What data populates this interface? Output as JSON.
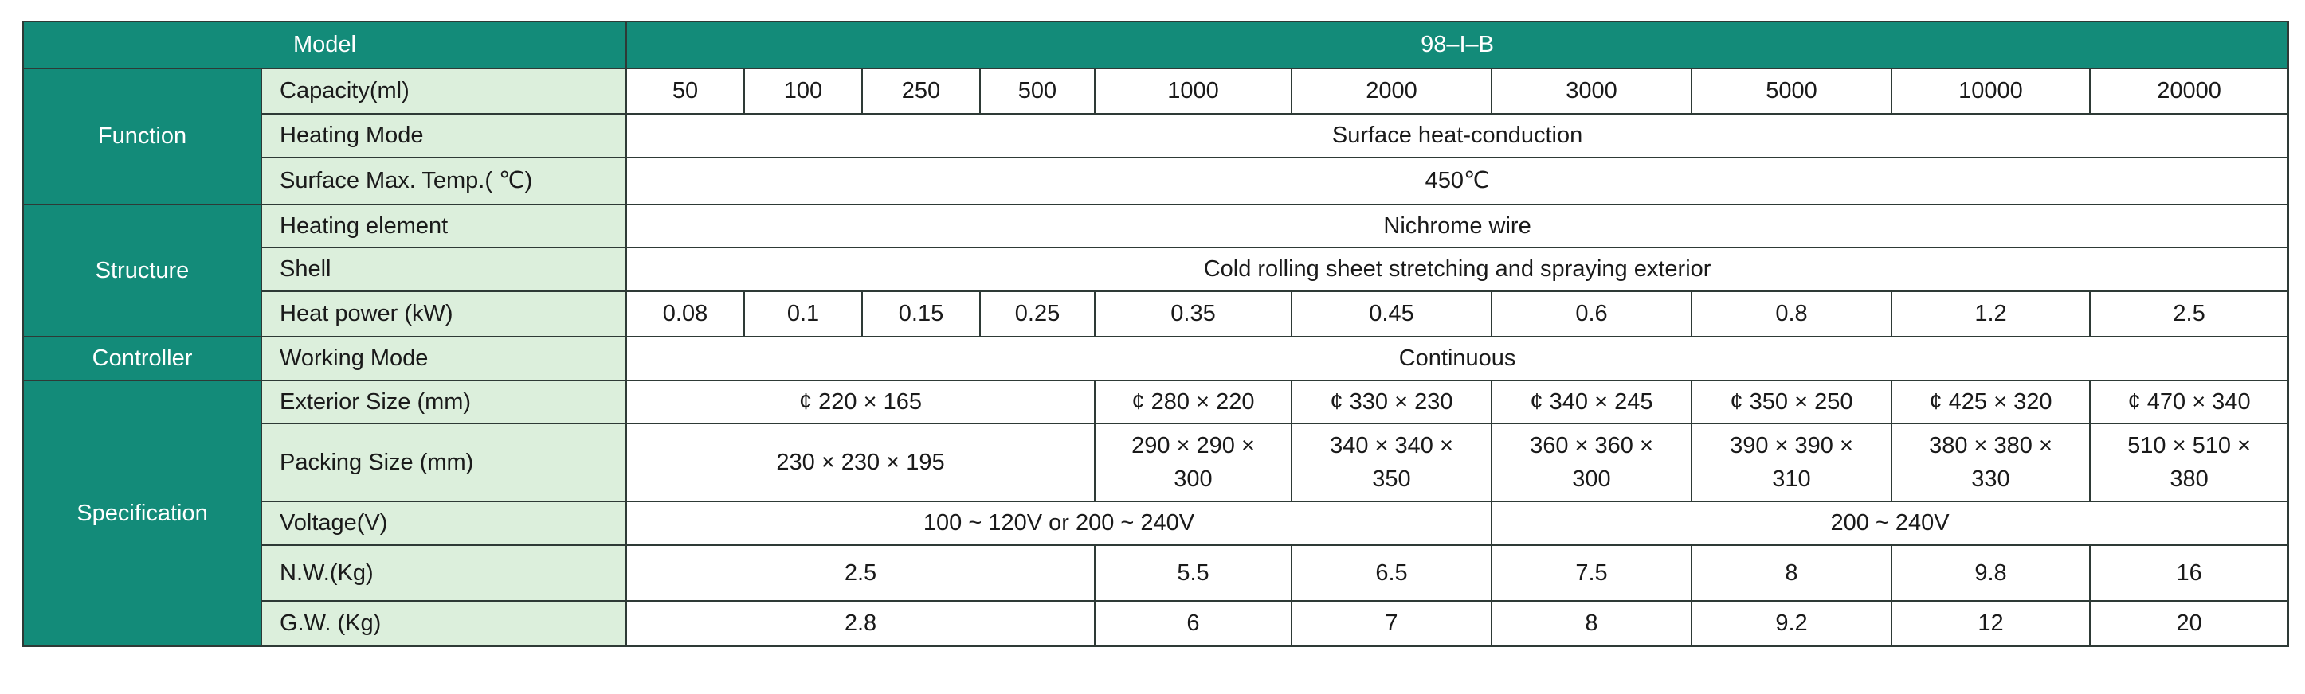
{
  "header": {
    "model_label": "Model",
    "model": "98–I–B"
  },
  "groups": [
    "Function",
    "Structure",
    "Controller",
    "Specification"
  ],
  "rows": [
    {
      "label": "Capacity(ml)",
      "cells": [
        "50",
        "100",
        "250",
        "500",
        "1000",
        "2000",
        "3000",
        "5000",
        "10000",
        "20000"
      ]
    },
    {
      "label": "Heating Mode",
      "cells": [
        "Surface heat-conduction"
      ]
    },
    {
      "label": "Surface Max. Temp.( ℃)",
      "cells": [
        "450℃"
      ]
    },
    {
      "label": "Heating element",
      "cells": [
        "Nichrome wire"
      ]
    },
    {
      "label": "Shell",
      "cells": [
        "Cold rolling sheet stretching and spraying exterior"
      ]
    },
    {
      "label": "Heat power (kW)",
      "cells": [
        "0.08",
        "0.1",
        "0.15",
        "0.25",
        "0.35",
        "0.45",
        "0.6",
        "0.8",
        "1.2",
        "2.5"
      ]
    },
    {
      "label": "Working Mode",
      "cells": [
        "Continuous"
      ]
    },
    {
      "label": "Exterior Size (mm)",
      "cells": [
        "¢ 220 × 165",
        "¢ 280 × 220",
        "¢ 330 × 230",
        "¢ 340 × 245",
        "¢ 350 × 250",
        "¢ 425 × 320",
        "¢ 470 × 340"
      ]
    },
    {
      "label": "Packing Size (mm)",
      "cells": [
        "230 × 230 × 195",
        "290 × 290 × 300",
        "340 × 340 × 350",
        "360 × 360 × 300",
        "390 × 390 × 310",
        "380 × 380 × 330",
        "510 × 510 × 380"
      ]
    },
    {
      "label": "Voltage(V)",
      "cells": [
        "100 ~ 120V or 200 ~ 240V",
        "200 ~ 240V"
      ]
    },
    {
      "label": "N.W.(Kg)",
      "cells": [
        "2.5",
        "5.5",
        "6.5",
        "7.5",
        "8",
        "9.8",
        "16"
      ]
    },
    {
      "label": "G.W. (Kg)",
      "cells": [
        "2.8",
        "6",
        "7",
        "8",
        "9.2",
        "12",
        "20"
      ]
    }
  ]
}
